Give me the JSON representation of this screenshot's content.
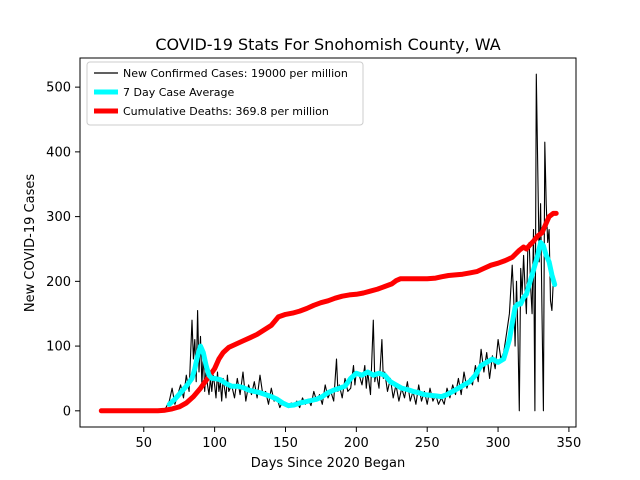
{
  "chart_data": {
    "type": "line",
    "title": "COVID-19 Stats For Snohomish County, WA",
    "xlabel": "Days Since 2020 Began",
    "ylabel": "New COVID-19 Cases",
    "xlim": [
      5,
      355
    ],
    "ylim": [
      -25,
      545
    ],
    "x_ticks": [
      50,
      100,
      150,
      200,
      250,
      300,
      350
    ],
    "y_ticks": [
      0,
      100,
      200,
      300,
      400,
      500
    ],
    "grid": false,
    "legend_position": "top-left",
    "series": [
      {
        "name": "New Confirmed Cases: 19000 per million",
        "color": "#000000",
        "style": "thin",
        "points": [
          [
            20,
            0
          ],
          [
            30,
            0
          ],
          [
            40,
            0
          ],
          [
            50,
            0
          ],
          [
            60,
            0
          ],
          [
            65,
            2
          ],
          [
            68,
            15
          ],
          [
            70,
            35
          ],
          [
            72,
            10
          ],
          [
            74,
            25
          ],
          [
            76,
            40
          ],
          [
            78,
            20
          ],
          [
            80,
            55
          ],
          [
            82,
            30
          ],
          [
            84,
            140
          ],
          [
            85,
            80
          ],
          [
            86,
            110
          ],
          [
            87,
            45
          ],
          [
            88,
            155
          ],
          [
            89,
            60
          ],
          [
            90,
            115
          ],
          [
            91,
            40
          ],
          [
            92,
            90
          ],
          [
            93,
            30
          ],
          [
            94,
            65
          ],
          [
            95,
            40
          ],
          [
            96,
            25
          ],
          [
            97,
            50
          ],
          [
            98,
            30
          ],
          [
            99,
            55
          ],
          [
            100,
            40
          ],
          [
            101,
            20
          ],
          [
            102,
            60
          ],
          [
            103,
            30
          ],
          [
            104,
            45
          ],
          [
            105,
            15
          ],
          [
            106,
            50
          ],
          [
            107,
            35
          ],
          [
            108,
            20
          ],
          [
            109,
            55
          ],
          [
            110,
            30
          ],
          [
            112,
            40
          ],
          [
            114,
            20
          ],
          [
            116,
            50
          ],
          [
            118,
            25
          ],
          [
            120,
            60
          ],
          [
            122,
            15
          ],
          [
            124,
            40
          ],
          [
            126,
            25
          ],
          [
            128,
            45
          ],
          [
            130,
            20
          ],
          [
            132,
            55
          ],
          [
            134,
            25
          ],
          [
            136,
            30
          ],
          [
            138,
            10
          ],
          [
            140,
            35
          ],
          [
            142,
            15
          ],
          [
            144,
            20
          ],
          [
            146,
            5
          ],
          [
            148,
            15
          ],
          [
            150,
            10
          ],
          [
            152,
            5
          ],
          [
            154,
            12
          ],
          [
            156,
            8
          ],
          [
            158,
            15
          ],
          [
            160,
            5
          ],
          [
            162,
            20
          ],
          [
            164,
            10
          ],
          [
            166,
            18
          ],
          [
            168,
            8
          ],
          [
            170,
            30
          ],
          [
            172,
            15
          ],
          [
            174,
            25
          ],
          [
            176,
            10
          ],
          [
            178,
            40
          ],
          [
            180,
            20
          ],
          [
            182,
            30
          ],
          [
            184,
            15
          ],
          [
            186,
            80
          ],
          [
            187,
            30
          ],
          [
            188,
            40
          ],
          [
            190,
            20
          ],
          [
            192,
            50
          ],
          [
            194,
            30
          ],
          [
            196,
            35
          ],
          [
            198,
            70
          ],
          [
            199,
            40
          ],
          [
            200,
            60
          ],
          [
            202,
            55
          ],
          [
            204,
            40
          ],
          [
            206,
            70
          ],
          [
            207,
            35
          ],
          [
            208,
            60
          ],
          [
            210,
            25
          ],
          [
            212,
            140
          ],
          [
            213,
            45
          ],
          [
            214,
            60
          ],
          [
            216,
            35
          ],
          [
            218,
            110
          ],
          [
            219,
            50
          ],
          [
            220,
            60
          ],
          [
            222,
            30
          ],
          [
            224,
            50
          ],
          [
            226,
            20
          ],
          [
            228,
            40
          ],
          [
            230,
            15
          ],
          [
            232,
            35
          ],
          [
            234,
            20
          ],
          [
            236,
            45
          ],
          [
            238,
            15
          ],
          [
            240,
            30
          ],
          [
            242,
            10
          ],
          [
            244,
            40
          ],
          [
            246,
            15
          ],
          [
            248,
            30
          ],
          [
            250,
            10
          ],
          [
            252,
            35
          ],
          [
            254,
            15
          ],
          [
            256,
            25
          ],
          [
            258,
            10
          ],
          [
            260,
            20
          ],
          [
            262,
            10
          ],
          [
            264,
            35
          ],
          [
            266,
            20
          ],
          [
            268,
            40
          ],
          [
            270,
            25
          ],
          [
            272,
            50
          ],
          [
            274,
            25
          ],
          [
            276,
            60
          ],
          [
            278,
            35
          ],
          [
            280,
            50
          ],
          [
            282,
            40
          ],
          [
            284,
            70
          ],
          [
            286,
            45
          ],
          [
            288,
            95
          ],
          [
            290,
            60
          ],
          [
            292,
            90
          ],
          [
            294,
            50
          ],
          [
            296,
            85
          ],
          [
            298,
            65
          ],
          [
            300,
            110
          ],
          [
            302,
            80
          ],
          [
            304,
            90
          ],
          [
            306,
            120
          ],
          [
            308,
            150
          ],
          [
            310,
            225
          ],
          [
            311,
            180
          ],
          [
            312,
            100
          ],
          [
            313,
            200
          ],
          [
            314,
            120
          ],
          [
            315,
            0
          ],
          [
            316,
            220
          ],
          [
            317,
            180
          ],
          [
            318,
            240
          ],
          [
            319,
            190
          ],
          [
            320,
            150
          ],
          [
            321,
            250
          ],
          [
            322,
            260
          ],
          [
            323,
            190
          ],
          [
            324,
            150
          ],
          [
            325,
            280
          ],
          [
            326,
            0
          ],
          [
            327,
            520
          ],
          [
            328,
            380
          ],
          [
            329,
            230
          ],
          [
            330,
            320
          ],
          [
            331,
            150
          ],
          [
            332,
            0
          ],
          [
            333,
            415
          ],
          [
            334,
            320
          ],
          [
            335,
            260
          ],
          [
            336,
            280
          ],
          [
            337,
            170
          ],
          [
            338,
            155
          ],
          [
            339,
            200
          ],
          [
            340,
            195
          ]
        ]
      },
      {
        "name": "7 Day Case Average",
        "color": "#00ffff",
        "style": "thick",
        "points": [
          [
            68,
            10
          ],
          [
            72,
            18
          ],
          [
            76,
            28
          ],
          [
            80,
            38
          ],
          [
            84,
            50
          ],
          [
            86,
            65
          ],
          [
            88,
            85
          ],
          [
            90,
            100
          ],
          [
            92,
            90
          ],
          [
            94,
            70
          ],
          [
            96,
            55
          ],
          [
            98,
            50
          ],
          [
            100,
            50
          ],
          [
            104,
            48
          ],
          [
            108,
            42
          ],
          [
            112,
            38
          ],
          [
            116,
            38
          ],
          [
            120,
            36
          ],
          [
            124,
            32
          ],
          [
            128,
            30
          ],
          [
            132,
            28
          ],
          [
            136,
            25
          ],
          [
            140,
            22
          ],
          [
            144,
            18
          ],
          [
            148,
            12
          ],
          [
            152,
            8
          ],
          [
            156,
            9
          ],
          [
            160,
            12
          ],
          [
            164,
            14
          ],
          [
            168,
            16
          ],
          [
            172,
            18
          ],
          [
            176,
            22
          ],
          [
            180,
            28
          ],
          [
            184,
            32
          ],
          [
            188,
            35
          ],
          [
            192,
            38
          ],
          [
            196,
            50
          ],
          [
            200,
            58
          ],
          [
            204,
            55
          ],
          [
            208,
            60
          ],
          [
            212,
            55
          ],
          [
            216,
            58
          ],
          [
            220,
            55
          ],
          [
            224,
            45
          ],
          [
            228,
            40
          ],
          [
            232,
            35
          ],
          [
            236,
            33
          ],
          [
            240,
            30
          ],
          [
            244,
            28
          ],
          [
            248,
            25
          ],
          [
            252,
            24
          ],
          [
            256,
            23
          ],
          [
            260,
            22
          ],
          [
            264,
            25
          ],
          [
            268,
            30
          ],
          [
            272,
            35
          ],
          [
            276,
            40
          ],
          [
            280,
            45
          ],
          [
            284,
            55
          ],
          [
            288,
            70
          ],
          [
            292,
            75
          ],
          [
            296,
            80
          ],
          [
            300,
            75
          ],
          [
            304,
            80
          ],
          [
            306,
            95
          ],
          [
            308,
            110
          ],
          [
            310,
            135
          ],
          [
            312,
            160
          ],
          [
            314,
            165
          ],
          [
            316,
            165
          ],
          [
            318,
            175
          ],
          [
            320,
            180
          ],
          [
            322,
            195
          ],
          [
            324,
            210
          ],
          [
            326,
            225
          ],
          [
            328,
            240
          ],
          [
            330,
            260
          ],
          [
            332,
            255
          ],
          [
            334,
            240
          ],
          [
            336,
            230
          ],
          [
            338,
            210
          ],
          [
            340,
            195
          ]
        ]
      },
      {
        "name": "Cumulative Deaths: 369.8 per million",
        "color": "#ff0000",
        "style": "thick",
        "points": [
          [
            20,
            0
          ],
          [
            40,
            0
          ],
          [
            60,
            0
          ],
          [
            65,
            1
          ],
          [
            70,
            3
          ],
          [
            75,
            6
          ],
          [
            80,
            12
          ],
          [
            85,
            22
          ],
          [
            90,
            35
          ],
          [
            95,
            50
          ],
          [
            100,
            65
          ],
          [
            103,
            80
          ],
          [
            106,
            90
          ],
          [
            110,
            98
          ],
          [
            115,
            103
          ],
          [
            120,
            108
          ],
          [
            125,
            113
          ],
          [
            130,
            118
          ],
          [
            135,
            125
          ],
          [
            140,
            132
          ],
          [
            145,
            145
          ],
          [
            150,
            149
          ],
          [
            155,
            151
          ],
          [
            160,
            154
          ],
          [
            165,
            158
          ],
          [
            170,
            163
          ],
          [
            175,
            167
          ],
          [
            180,
            170
          ],
          [
            185,
            174
          ],
          [
            190,
            177
          ],
          [
            195,
            179
          ],
          [
            200,
            180
          ],
          [
            205,
            182
          ],
          [
            210,
            185
          ],
          [
            215,
            188
          ],
          [
            220,
            192
          ],
          [
            225,
            196
          ],
          [
            228,
            201
          ],
          [
            231,
            204
          ],
          [
            240,
            204
          ],
          [
            250,
            204
          ],
          [
            256,
            205
          ],
          [
            260,
            207
          ],
          [
            265,
            209
          ],
          [
            270,
            210
          ],
          [
            275,
            211
          ],
          [
            280,
            213
          ],
          [
            285,
            215
          ],
          [
            290,
            220
          ],
          [
            295,
            225
          ],
          [
            300,
            228
          ],
          [
            305,
            232
          ],
          [
            310,
            237
          ],
          [
            315,
            248
          ],
          [
            318,
            253
          ],
          [
            320,
            250
          ],
          [
            322,
            255
          ],
          [
            325,
            262
          ],
          [
            328,
            270
          ],
          [
            331,
            275
          ],
          [
            334,
            290
          ],
          [
            336,
            300
          ],
          [
            339,
            305
          ],
          [
            341,
            305
          ]
        ]
      }
    ]
  }
}
